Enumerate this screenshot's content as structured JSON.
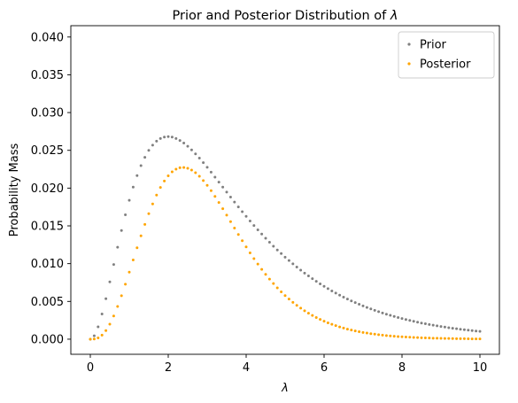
{
  "chart_data": {
    "type": "scatter",
    "title_prefix": "Prior and Posterior Distribution of ",
    "title_symbol": "λ",
    "xlabel": "λ",
    "ylabel": "Probability Mass",
    "xlim": [
      -0.5,
      10.5
    ],
    "ylim": [
      -0.002,
      0.0415
    ],
    "xticks": [
      0,
      2,
      4,
      6,
      8,
      10
    ],
    "xtick_labels": [
      "0",
      "2",
      "4",
      "6",
      "8",
      "10"
    ],
    "yticks": [
      0.0,
      0.005,
      0.01,
      0.015,
      0.02,
      0.025,
      0.03,
      0.035,
      0.04
    ],
    "ytick_labels": [
      "0.000",
      "0.005",
      "0.010",
      "0.015",
      "0.020",
      "0.025",
      "0.030",
      "0.035",
      "0.040"
    ],
    "legend_position": "top-right",
    "grid": false,
    "series": [
      {
        "name": "Prior",
        "color": "#808080",
        "x": [
          0.0,
          0.1,
          0.2,
          0.3,
          0.4,
          0.5,
          0.6,
          0.7,
          0.8,
          0.9,
          1.0,
          1.1,
          1.2,
          1.3,
          1.4,
          1.5,
          1.6,
          1.7,
          1.8,
          1.9,
          2.0,
          2.1,
          2.2,
          2.3,
          2.4,
          2.5,
          2.6,
          2.7,
          2.8,
          2.9,
          3.0,
          3.1,
          3.2,
          3.3,
          3.4,
          3.5,
          3.6,
          3.7,
          3.8,
          3.9,
          4.0,
          4.1,
          4.2,
          4.3,
          4.4,
          4.5,
          4.6,
          4.7,
          4.8,
          4.9,
          5.0,
          5.1,
          5.2,
          5.3,
          5.4,
          5.5,
          5.6,
          5.7,
          5.8,
          5.9,
          6.0,
          6.1,
          6.2,
          6.3,
          6.4,
          6.5,
          6.6,
          6.7,
          6.8,
          6.9,
          7.0,
          7.1,
          7.2,
          7.3,
          7.4,
          7.5,
          7.6,
          7.7,
          7.8,
          7.9,
          8.0,
          8.1,
          8.2,
          8.3,
          8.4,
          8.5,
          8.6,
          8.7,
          8.8,
          8.9,
          9.0,
          9.1,
          9.2,
          9.3,
          9.4,
          9.5,
          9.6,
          9.7,
          9.8,
          9.9,
          10.0
        ],
        "y": [
          0.0,
          0.00045,
          0.00164,
          0.00333,
          0.00536,
          0.00758,
          0.00988,
          0.01217,
          0.01438,
          0.01647,
          0.01839,
          0.02013,
          0.02166,
          0.02298,
          0.02408,
          0.02499,
          0.02569,
          0.02621,
          0.02656,
          0.02675,
          0.02681,
          0.02675,
          0.02657,
          0.0263,
          0.02596,
          0.02554,
          0.02506,
          0.02453,
          0.02397,
          0.02337,
          0.02275,
          0.02211,
          0.02145,
          0.02079,
          0.02013,
          0.01947,
          0.01881,
          0.01815,
          0.01751,
          0.01688,
          0.01626,
          0.01565,
          0.01505,
          0.01447,
          0.01391,
          0.01336,
          0.01283,
          0.01231,
          0.01181,
          0.01133,
          0.01086,
          0.01041,
          0.00997,
          0.00955,
          0.00914,
          0.00875,
          0.00837,
          0.00801,
          0.00766,
          0.00732,
          0.007,
          0.00669,
          0.00639,
          0.0061,
          0.00583,
          0.00556,
          0.00531,
          0.00507,
          0.00484,
          0.00462,
          0.0044,
          0.0042,
          0.00401,
          0.00382,
          0.00364,
          0.00347,
          0.00331,
          0.00316,
          0.00301,
          0.00287,
          0.00273,
          0.0026,
          0.00248,
          0.00236,
          0.00225,
          0.00214,
          0.00204,
          0.00194,
          0.00185,
          0.00176,
          0.00168,
          0.0016,
          0.00152,
          0.00145,
          0.00138,
          0.00131,
          0.00125,
          0.00119,
          0.00113,
          0.00108,
          0.00103
        ]
      },
      {
        "name": "Posterior",
        "color": "#ffa500",
        "x": [
          0.0,
          0.1,
          0.2,
          0.3,
          0.4,
          0.5,
          0.6,
          0.7,
          0.8,
          0.9,
          1.0,
          1.1,
          1.2,
          1.3,
          1.4,
          1.5,
          1.6,
          1.7,
          1.8,
          1.9,
          2.0,
          2.1,
          2.2,
          2.3,
          2.4,
          2.5,
          2.6,
          2.7,
          2.8,
          2.9,
          3.0,
          3.1,
          3.2,
          3.3,
          3.4,
          3.5,
          3.6,
          3.7,
          3.8,
          3.9,
          4.0,
          4.1,
          4.2,
          4.3,
          4.4,
          4.5,
          4.6,
          4.7,
          4.8,
          4.9,
          5.0,
          5.1,
          5.2,
          5.3,
          5.4,
          5.5,
          5.6,
          5.7,
          5.8,
          5.9,
          6.0,
          6.1,
          6.2,
          6.3,
          6.4,
          6.5,
          6.6,
          6.7,
          6.8,
          6.9,
          7.0,
          7.1,
          7.2,
          7.3,
          7.4,
          7.5,
          7.6,
          7.7,
          7.8,
          7.9,
          8.0,
          8.1,
          8.2,
          8.3,
          8.4,
          8.5,
          8.6,
          8.7,
          8.8,
          8.9,
          9.0,
          9.1,
          9.2,
          9.3,
          9.4,
          9.5,
          9.6,
          9.7,
          9.8,
          9.9,
          10.0
        ],
        "y": [
          0.0,
          2e-05,
          0.00017,
          0.00053,
          0.00114,
          0.00199,
          0.00307,
          0.00433,
          0.00575,
          0.00728,
          0.00887,
          0.01049,
          0.0121,
          0.01368,
          0.01519,
          0.01661,
          0.01791,
          0.01907,
          0.02009,
          0.02094,
          0.02163,
          0.02215,
          0.0225,
          0.02269,
          0.02273,
          0.02263,
          0.02239,
          0.02203,
          0.02156,
          0.021,
          0.02036,
          0.01966,
          0.0189,
          0.0181,
          0.01727,
          0.01642,
          0.01556,
          0.01471,
          0.01386,
          0.01303,
          0.01221,
          0.01143,
          0.01067,
          0.00994,
          0.00924,
          0.00858,
          0.00795,
          0.00736,
          0.0068,
          0.00627,
          0.00577,
          0.00531,
          0.00488,
          0.00448,
          0.00411,
          0.00376,
          0.00344,
          0.00314,
          0.00287,
          0.00261,
          0.00238,
          0.00216,
          0.00197,
          0.00179,
          0.00162,
          0.00147,
          0.00133,
          0.00121,
          0.00109,
          0.00099,
          0.00089,
          0.00081,
          0.00073,
          0.00066,
          0.00059,
          0.00053,
          0.00048,
          0.00043,
          0.00039,
          0.00035,
          0.00032,
          0.00028,
          0.00026,
          0.00023,
          0.00021,
          0.00018,
          0.00017,
          0.00015,
          0.00013,
          0.00012,
          0.00011,
          0.0001,
          9e-05,
          8e-05,
          7e-05,
          6e-05,
          6e-05,
          5e-05,
          4e-05,
          4e-05,
          4e-05
        ]
      }
    ]
  }
}
